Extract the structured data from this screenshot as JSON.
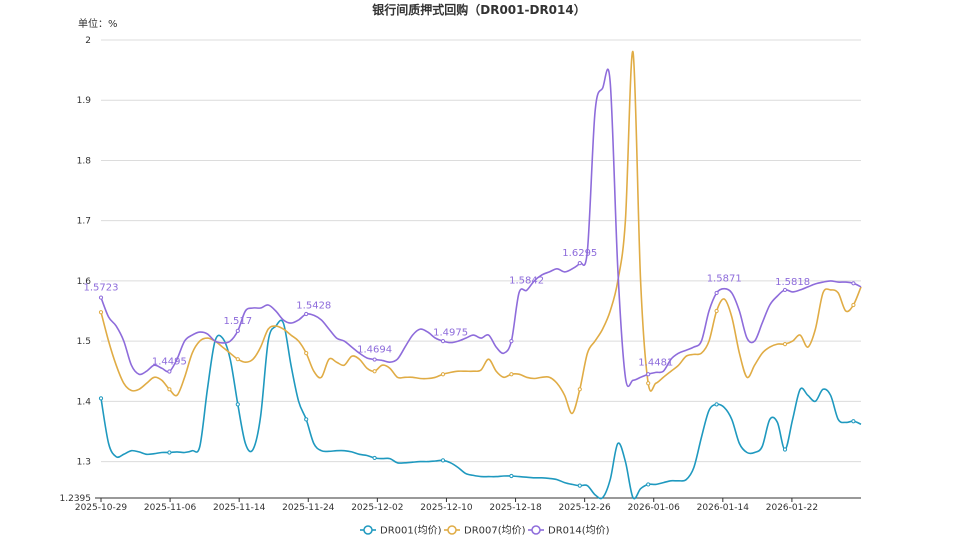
{
  "chart_data": {
    "type": "line",
    "title": "银行间质押式回购（DR001-DR014）",
    "unit_label": "单位：%",
    "ylim": [
      1.2395,
      2.0
    ],
    "y_ticks": [
      "1.2395",
      "1.3",
      "1.4",
      "1.5",
      "1.6",
      "1.7",
      "1.8",
      "1.9",
      "2"
    ],
    "x_ticks": [
      "2025-10-29",
      "2025-11-06",
      "2025-11-14",
      "2025-11-24",
      "2025-12-02",
      "2025-12-10",
      "2025-12-18",
      "2025-12-26",
      "2026-01-06",
      "2026-01-14",
      "2026-01-22"
    ],
    "grid": true,
    "legend_position": "bottom",
    "series": [
      {
        "name": "DR001(均价)",
        "color": "#1f99bf",
        "values": [
          1.405,
          1.33,
          1.308,
          1.312,
          1.318,
          1.316,
          1.312,
          1.313,
          1.315,
          1.315,
          1.316,
          1.315,
          1.318,
          1.325,
          1.42,
          1.5,
          1.505,
          1.47,
          1.395,
          1.33,
          1.32,
          1.375,
          1.5,
          1.525,
          1.53,
          1.46,
          1.4,
          1.37,
          1.33,
          1.318,
          1.317,
          1.318,
          1.318,
          1.316,
          1.312,
          1.31,
          1.306,
          1.305,
          1.305,
          1.298,
          1.298,
          1.299,
          1.3,
          1.3,
          1.301,
          1.302,
          1.298,
          1.29,
          1.28,
          1.277,
          1.275,
          1.275,
          1.275,
          1.276,
          1.276,
          1.275,
          1.274,
          1.273,
          1.273,
          1.272,
          1.27,
          1.265,
          1.262,
          1.26,
          1.26,
          1.245,
          1.24,
          1.27,
          1.33,
          1.3,
          1.24,
          1.255,
          1.262,
          1.262,
          1.265,
          1.268,
          1.268,
          1.27,
          1.29,
          1.34,
          1.385,
          1.395,
          1.39,
          1.37,
          1.33,
          1.315,
          1.315,
          1.325,
          1.37,
          1.365,
          1.32,
          1.37,
          1.42,
          1.41,
          1.4,
          1.42,
          1.41,
          1.37,
          1.365,
          1.367,
          1.362
        ]
      },
      {
        "name": "DR007(均价)",
        "color": "#e0ac45",
        "values": [
          1.548,
          1.5,
          1.46,
          1.43,
          1.418,
          1.42,
          1.43,
          1.44,
          1.435,
          1.42,
          1.41,
          1.44,
          1.48,
          1.5,
          1.505,
          1.5,
          1.49,
          1.48,
          1.47,
          1.465,
          1.47,
          1.49,
          1.52,
          1.525,
          1.52,
          1.51,
          1.5,
          1.48,
          1.45,
          1.44,
          1.47,
          1.465,
          1.46,
          1.475,
          1.47,
          1.455,
          1.45,
          1.46,
          1.455,
          1.44,
          1.44,
          1.44,
          1.438,
          1.438,
          1.44,
          1.445,
          1.448,
          1.45,
          1.45,
          1.45,
          1.452,
          1.47,
          1.45,
          1.44,
          1.445,
          1.445,
          1.44,
          1.438,
          1.44,
          1.44,
          1.43,
          1.41,
          1.38,
          1.42,
          1.48,
          1.5,
          1.52,
          1.55,
          1.6,
          1.7,
          1.98,
          1.6,
          1.43,
          1.43,
          1.44,
          1.45,
          1.46,
          1.475,
          1.478,
          1.48,
          1.5,
          1.55,
          1.57,
          1.54,
          1.48,
          1.44,
          1.46,
          1.48,
          1.49,
          1.495,
          1.495,
          1.5,
          1.51,
          1.49,
          1.52,
          1.58,
          1.585,
          1.58,
          1.55,
          1.56,
          1.59
        ]
      },
      {
        "name": "DR014(均价)",
        "color": "#8e6cdb",
        "values": [
          1.5723,
          1.54,
          1.525,
          1.5,
          1.46,
          1.445,
          1.45,
          1.46,
          1.455,
          1.4495,
          1.47,
          1.5,
          1.51,
          1.515,
          1.512,
          1.5,
          1.497,
          1.5,
          1.517,
          1.55,
          1.555,
          1.555,
          1.56,
          1.55,
          1.535,
          1.53,
          1.535,
          1.545,
          1.5428,
          1.535,
          1.52,
          1.505,
          1.5,
          1.49,
          1.48,
          1.472,
          1.4694,
          1.468,
          1.465,
          1.47,
          1.49,
          1.51,
          1.52,
          1.515,
          1.505,
          1.5,
          1.4975,
          1.5,
          1.505,
          1.51,
          1.505,
          1.51,
          1.49,
          1.48,
          1.5,
          1.58,
          1.5842,
          1.6,
          1.61,
          1.615,
          1.62,
          1.615,
          1.62,
          1.6295,
          1.65,
          1.88,
          1.92,
          1.93,
          1.62,
          1.44,
          1.435,
          1.44,
          1.445,
          1.4481,
          1.45,
          1.47,
          1.48,
          1.485,
          1.49,
          1.5,
          1.55,
          1.58,
          1.5871,
          1.58,
          1.55,
          1.505,
          1.5,
          1.53,
          1.56,
          1.575,
          1.585,
          1.5818,
          1.585,
          1.59,
          1.595,
          1.598,
          1.6,
          1.598,
          1.598,
          1.596,
          1.59
        ]
      }
    ],
    "point_labels": [
      {
        "series": 2,
        "index": 0,
        "label": "1.5723"
      },
      {
        "series": 2,
        "index": 9,
        "label": "1.4495"
      },
      {
        "series": 2,
        "index": 18,
        "label": "1.517"
      },
      {
        "series": 2,
        "index": 28,
        "label": "1.5428"
      },
      {
        "series": 2,
        "index": 36,
        "label": "1.4694"
      },
      {
        "series": 2,
        "index": 46,
        "label": "1.4975"
      },
      {
        "series": 2,
        "index": 56,
        "label": "1.5842"
      },
      {
        "series": 2,
        "index": 63,
        "label": "1.6295"
      },
      {
        "series": 2,
        "index": 73,
        "label": "1.4481"
      },
      {
        "series": 2,
        "index": 82,
        "label": "1.5871"
      },
      {
        "series": 2,
        "index": 91,
        "label": "1.5818"
      }
    ]
  }
}
